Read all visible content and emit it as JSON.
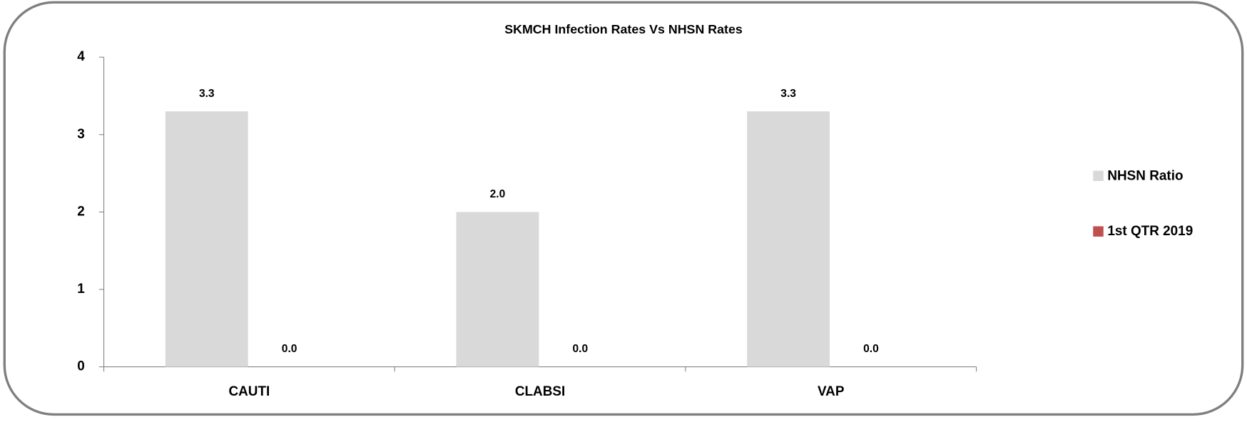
{
  "chart_data": {
    "type": "bar",
    "title": "SKMCH Infection Rates Vs NHSN Rates",
    "categories": [
      "CAUTI",
      "CLABSI",
      "VAP"
    ],
    "series": [
      {
        "name": "NHSN Ratio",
        "color": "#d9d9d9",
        "values": [
          3.3,
          2,
          3.3
        ],
        "value_labels": [
          "3.3",
          "2.0",
          "3.3"
        ]
      },
      {
        "name": "1st QTR 2019",
        "color": "#c0504d",
        "values": [
          0,
          0,
          0
        ],
        "value_labels": [
          "0.0",
          "0.0",
          "0.0"
        ]
      }
    ],
    "ylim": [
      0,
      4
    ],
    "yticks": [
      0,
      1,
      2,
      3,
      4
    ],
    "legend": "right"
  }
}
